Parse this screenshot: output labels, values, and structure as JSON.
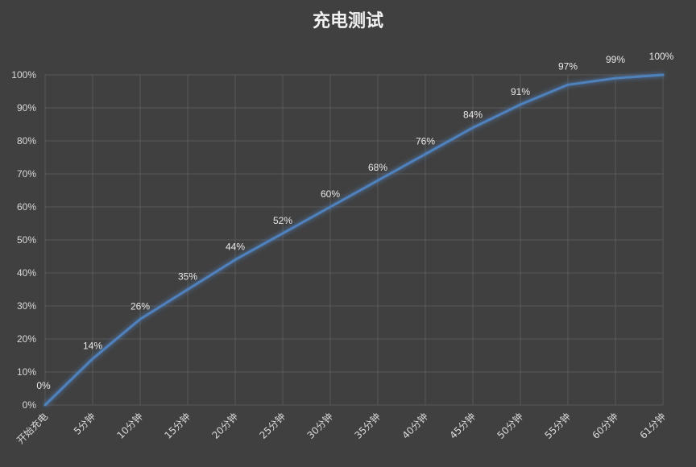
{
  "chart_data": {
    "type": "line",
    "title": "充电测试",
    "categories": [
      "开始充电",
      "5分钟",
      "10分钟",
      "15分钟",
      "20分钟",
      "25分钟",
      "30分钟",
      "35分钟",
      "40分钟",
      "45分钟",
      "50分钟",
      "55分钟",
      "60分钟",
      "61分钟"
    ],
    "series": [
      {
        "values": [
          0,
          14,
          26,
          35,
          44,
          52,
          60,
          68,
          76,
          84,
          91,
          97,
          99,
          100
        ],
        "data_labels": [
          "0%",
          "14%",
          "26%",
          "35%",
          "44%",
          "52%",
          "60%",
          "68%",
          "76%",
          "84%",
          "91%",
          "97%",
          "99%",
          "100%"
        ],
        "color": "#4f81bd"
      }
    ],
    "yticks": [
      0,
      10,
      20,
      30,
      40,
      50,
      60,
      70,
      80,
      90,
      100
    ],
    "ytick_labels": [
      "0%",
      "10%",
      "20%",
      "30%",
      "40%",
      "50%",
      "60%",
      "70%",
      "80%",
      "90%",
      "100%"
    ],
    "ylim": [
      0,
      100
    ],
    "xlabel": "",
    "ylabel": "",
    "grid": true,
    "colors": {
      "background": "#404040",
      "grid": "#595959",
      "text": "#d9d9d9",
      "line": "#4f81bd"
    }
  }
}
